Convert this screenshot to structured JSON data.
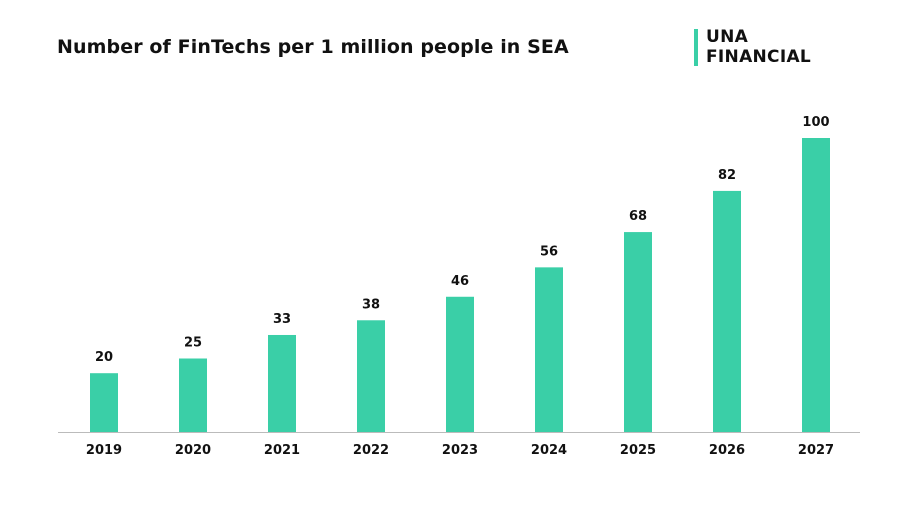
{
  "logo": {
    "line1": "UNA",
    "line2": "FINANCIAL",
    "accent_color": "#3acfa7"
  },
  "chart_data": {
    "type": "bar",
    "title": "Number of FinTechs per 1 million people in SEA",
    "xlabel": "",
    "ylabel": "",
    "categories": [
      "2019",
      "2020",
      "2021",
      "2022",
      "2023",
      "2024",
      "2025",
      "2026",
      "2027"
    ],
    "values": [
      20,
      25,
      33,
      38,
      46,
      56,
      68,
      82,
      100
    ],
    "ylim": [
      0,
      100
    ],
    "grid": false,
    "bar_color": "#3acfa7",
    "axis_color": "#bbbbbb"
  }
}
